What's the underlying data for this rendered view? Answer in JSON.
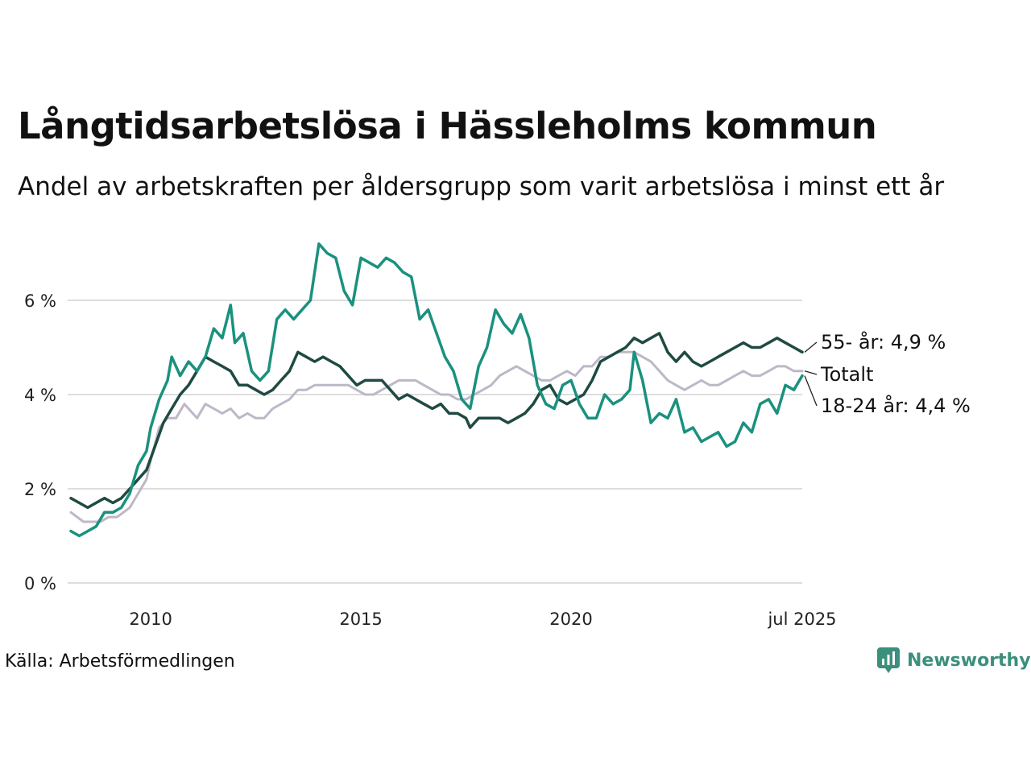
{
  "title": "Långtidsarbetslösa i Hässleholms kommun",
  "subtitle": "Andel av arbetskraften per åldersgrupp som varit arbetslösa i minst ett år",
  "source": "Källa: Arbetsförmedlingen",
  "brand": {
    "name": "Newsworthy",
    "icon": "newsworthy-logo-icon",
    "color": "#3a8f7d"
  },
  "chart_data": {
    "type": "line",
    "xlim": [
      2008.1,
      2025.5
    ],
    "ylim": [
      0,
      6
    ],
    "y_ticks": [
      0,
      2,
      4,
      6
    ],
    "y_tick_labels": [
      "0 %",
      "2 %",
      "4 %",
      "6 %"
    ],
    "x_ticks": [
      2010,
      2015,
      2020,
      2025.5
    ],
    "x_tick_labels": [
      "2010",
      "2015",
      "2020",
      "jul 2025"
    ],
    "grid": true,
    "series": [
      {
        "name": "Totalt",
        "label": "Totalt",
        "color": "#bdb8c7",
        "width": 3,
        "points": [
          [
            2008.1,
            1.5
          ],
          [
            2008.4,
            1.3
          ],
          [
            2008.8,
            1.3
          ],
          [
            2009.0,
            1.4
          ],
          [
            2009.2,
            1.4
          ],
          [
            2009.5,
            1.6
          ],
          [
            2009.7,
            1.9
          ],
          [
            2009.9,
            2.2
          ],
          [
            2010.0,
            2.6
          ],
          [
            2010.2,
            3.3
          ],
          [
            2010.4,
            3.5
          ],
          [
            2010.6,
            3.5
          ],
          [
            2010.8,
            3.8
          ],
          [
            2011.0,
            3.6
          ],
          [
            2011.1,
            3.5
          ],
          [
            2011.3,
            3.8
          ],
          [
            2011.5,
            3.7
          ],
          [
            2011.7,
            3.6
          ],
          [
            2011.9,
            3.7
          ],
          [
            2012.1,
            3.5
          ],
          [
            2012.3,
            3.6
          ],
          [
            2012.5,
            3.5
          ],
          [
            2012.7,
            3.5
          ],
          [
            2012.9,
            3.7
          ],
          [
            2013.1,
            3.8
          ],
          [
            2013.3,
            3.9
          ],
          [
            2013.5,
            4.1
          ],
          [
            2013.7,
            4.1
          ],
          [
            2013.9,
            4.2
          ],
          [
            2014.1,
            4.2
          ],
          [
            2014.3,
            4.2
          ],
          [
            2014.5,
            4.2
          ],
          [
            2014.7,
            4.2
          ],
          [
            2014.9,
            4.1
          ],
          [
            2015.1,
            4.0
          ],
          [
            2015.3,
            4.0
          ],
          [
            2015.5,
            4.1
          ],
          [
            2015.7,
            4.2
          ],
          [
            2015.9,
            4.3
          ],
          [
            2016.1,
            4.3
          ],
          [
            2016.3,
            4.3
          ],
          [
            2016.5,
            4.2
          ],
          [
            2016.7,
            4.1
          ],
          [
            2016.9,
            4.0
          ],
          [
            2017.1,
            4.0
          ],
          [
            2017.3,
            3.9
          ],
          [
            2017.5,
            3.9
          ],
          [
            2017.7,
            4.0
          ],
          [
            2017.9,
            4.1
          ],
          [
            2018.1,
            4.2
          ],
          [
            2018.3,
            4.4
          ],
          [
            2018.5,
            4.5
          ],
          [
            2018.7,
            4.6
          ],
          [
            2018.9,
            4.5
          ],
          [
            2019.1,
            4.4
          ],
          [
            2019.3,
            4.3
          ],
          [
            2019.5,
            4.3
          ],
          [
            2019.7,
            4.4
          ],
          [
            2019.9,
            4.5
          ],
          [
            2020.1,
            4.4
          ],
          [
            2020.3,
            4.6
          ],
          [
            2020.5,
            4.6
          ],
          [
            2020.7,
            4.8
          ],
          [
            2020.9,
            4.8
          ],
          [
            2021.1,
            4.9
          ],
          [
            2021.3,
            4.9
          ],
          [
            2021.5,
            4.9
          ],
          [
            2021.7,
            4.8
          ],
          [
            2021.9,
            4.7
          ],
          [
            2022.1,
            4.5
          ],
          [
            2022.3,
            4.3
          ],
          [
            2022.5,
            4.2
          ],
          [
            2022.7,
            4.1
          ],
          [
            2022.9,
            4.2
          ],
          [
            2023.1,
            4.3
          ],
          [
            2023.3,
            4.2
          ],
          [
            2023.5,
            4.2
          ],
          [
            2023.7,
            4.3
          ],
          [
            2023.9,
            4.4
          ],
          [
            2024.1,
            4.5
          ],
          [
            2024.3,
            4.4
          ],
          [
            2024.5,
            4.4
          ],
          [
            2024.7,
            4.5
          ],
          [
            2024.9,
            4.6
          ],
          [
            2025.1,
            4.6
          ],
          [
            2025.3,
            4.5
          ],
          [
            2025.5,
            4.5
          ]
        ]
      },
      {
        "name": "55- år",
        "label": "55- år: 4,9 %",
        "color": "#1f4a42",
        "width": 3.5,
        "points": [
          [
            2008.1,
            1.8
          ],
          [
            2008.3,
            1.7
          ],
          [
            2008.5,
            1.6
          ],
          [
            2008.7,
            1.7
          ],
          [
            2008.9,
            1.8
          ],
          [
            2009.1,
            1.7
          ],
          [
            2009.3,
            1.8
          ],
          [
            2009.5,
            2.0
          ],
          [
            2009.7,
            2.2
          ],
          [
            2009.9,
            2.4
          ],
          [
            2010.1,
            2.9
          ],
          [
            2010.3,
            3.4
          ],
          [
            2010.5,
            3.7
          ],
          [
            2010.7,
            4.0
          ],
          [
            2010.9,
            4.2
          ],
          [
            2011.1,
            4.5
          ],
          [
            2011.3,
            4.8
          ],
          [
            2011.5,
            4.7
          ],
          [
            2011.7,
            4.6
          ],
          [
            2011.9,
            4.5
          ],
          [
            2012.1,
            4.2
          ],
          [
            2012.3,
            4.2
          ],
          [
            2012.5,
            4.1
          ],
          [
            2012.7,
            4.0
          ],
          [
            2012.9,
            4.1
          ],
          [
            2013.1,
            4.3
          ],
          [
            2013.3,
            4.5
          ],
          [
            2013.5,
            4.9
          ],
          [
            2013.7,
            4.8
          ],
          [
            2013.9,
            4.7
          ],
          [
            2014.1,
            4.8
          ],
          [
            2014.3,
            4.7
          ],
          [
            2014.5,
            4.6
          ],
          [
            2014.7,
            4.4
          ],
          [
            2014.9,
            4.2
          ],
          [
            2015.1,
            4.3
          ],
          [
            2015.3,
            4.3
          ],
          [
            2015.5,
            4.3
          ],
          [
            2015.7,
            4.1
          ],
          [
            2015.9,
            3.9
          ],
          [
            2016.1,
            4.0
          ],
          [
            2016.3,
            3.9
          ],
          [
            2016.5,
            3.8
          ],
          [
            2016.7,
            3.7
          ],
          [
            2016.9,
            3.8
          ],
          [
            2017.1,
            3.6
          ],
          [
            2017.3,
            3.6
          ],
          [
            2017.5,
            3.5
          ],
          [
            2017.6,
            3.3
          ],
          [
            2017.8,
            3.5
          ],
          [
            2018.1,
            3.5
          ],
          [
            2018.3,
            3.5
          ],
          [
            2018.5,
            3.4
          ],
          [
            2018.7,
            3.5
          ],
          [
            2018.9,
            3.6
          ],
          [
            2019.1,
            3.8
          ],
          [
            2019.3,
            4.1
          ],
          [
            2019.5,
            4.2
          ],
          [
            2019.7,
            3.9
          ],
          [
            2019.9,
            3.8
          ],
          [
            2020.1,
            3.9
          ],
          [
            2020.3,
            4.0
          ],
          [
            2020.5,
            4.3
          ],
          [
            2020.7,
            4.7
          ],
          [
            2020.9,
            4.8
          ],
          [
            2021.1,
            4.9
          ],
          [
            2021.3,
            5.0
          ],
          [
            2021.5,
            5.2
          ],
          [
            2021.7,
            5.1
          ],
          [
            2021.9,
            5.2
          ],
          [
            2022.1,
            5.3
          ],
          [
            2022.3,
            4.9
          ],
          [
            2022.5,
            4.7
          ],
          [
            2022.7,
            4.9
          ],
          [
            2022.9,
            4.7
          ],
          [
            2023.1,
            4.6
          ],
          [
            2023.3,
            4.7
          ],
          [
            2023.5,
            4.8
          ],
          [
            2023.7,
            4.9
          ],
          [
            2023.9,
            5.0
          ],
          [
            2024.1,
            5.1
          ],
          [
            2024.3,
            5.0
          ],
          [
            2024.5,
            5.0
          ],
          [
            2024.7,
            5.1
          ],
          [
            2024.9,
            5.2
          ],
          [
            2025.1,
            5.1
          ],
          [
            2025.3,
            5.0
          ],
          [
            2025.5,
            4.9
          ]
        ]
      },
      {
        "name": "18-24 år",
        "label": "18-24 år: 4,4 %",
        "color": "#1a917e",
        "width": 3.5,
        "points": [
          [
            2008.1,
            1.1
          ],
          [
            2008.3,
            1.0
          ],
          [
            2008.5,
            1.1
          ],
          [
            2008.7,
            1.2
          ],
          [
            2008.9,
            1.5
          ],
          [
            2009.1,
            1.5
          ],
          [
            2009.3,
            1.6
          ],
          [
            2009.5,
            1.9
          ],
          [
            2009.7,
            2.5
          ],
          [
            2009.9,
            2.8
          ],
          [
            2010.0,
            3.3
          ],
          [
            2010.2,
            3.9
          ],
          [
            2010.4,
            4.3
          ],
          [
            2010.5,
            4.8
          ],
          [
            2010.7,
            4.4
          ],
          [
            2010.9,
            4.7
          ],
          [
            2011.1,
            4.5
          ],
          [
            2011.3,
            4.8
          ],
          [
            2011.5,
            5.4
          ],
          [
            2011.7,
            5.2
          ],
          [
            2011.9,
            5.9
          ],
          [
            2012.0,
            5.1
          ],
          [
            2012.2,
            5.3
          ],
          [
            2012.4,
            4.5
          ],
          [
            2012.6,
            4.3
          ],
          [
            2012.8,
            4.5
          ],
          [
            2013.0,
            5.6
          ],
          [
            2013.2,
            5.8
          ],
          [
            2013.4,
            5.6
          ],
          [
            2013.6,
            5.8
          ],
          [
            2013.8,
            6.0
          ],
          [
            2014.0,
            7.2
          ],
          [
            2014.2,
            7.0
          ],
          [
            2014.4,
            6.9
          ],
          [
            2014.6,
            6.2
          ],
          [
            2014.8,
            5.9
          ],
          [
            2015.0,
            6.9
          ],
          [
            2015.2,
            6.8
          ],
          [
            2015.4,
            6.7
          ],
          [
            2015.6,
            6.9
          ],
          [
            2015.8,
            6.8
          ],
          [
            2016.0,
            6.6
          ],
          [
            2016.2,
            6.5
          ],
          [
            2016.4,
            5.6
          ],
          [
            2016.6,
            5.8
          ],
          [
            2016.8,
            5.3
          ],
          [
            2017.0,
            4.8
          ],
          [
            2017.2,
            4.5
          ],
          [
            2017.4,
            3.9
          ],
          [
            2017.6,
            3.7
          ],
          [
            2017.8,
            4.6
          ],
          [
            2018.0,
            5.0
          ],
          [
            2018.2,
            5.8
          ],
          [
            2018.4,
            5.5
          ],
          [
            2018.6,
            5.3
          ],
          [
            2018.8,
            5.7
          ],
          [
            2019.0,
            5.2
          ],
          [
            2019.2,
            4.2
          ],
          [
            2019.4,
            3.8
          ],
          [
            2019.6,
            3.7
          ],
          [
            2019.8,
            4.2
          ],
          [
            2020.0,
            4.3
          ],
          [
            2020.2,
            3.8
          ],
          [
            2020.4,
            3.5
          ],
          [
            2020.6,
            3.5
          ],
          [
            2020.8,
            4.0
          ],
          [
            2021.0,
            3.8
          ],
          [
            2021.2,
            3.9
          ],
          [
            2021.4,
            4.1
          ],
          [
            2021.5,
            4.9
          ],
          [
            2021.7,
            4.3
          ],
          [
            2021.9,
            3.4
          ],
          [
            2022.1,
            3.6
          ],
          [
            2022.3,
            3.5
          ],
          [
            2022.5,
            3.9
          ],
          [
            2022.7,
            3.2
          ],
          [
            2022.9,
            3.3
          ],
          [
            2023.1,
            3.0
          ],
          [
            2023.3,
            3.1
          ],
          [
            2023.5,
            3.2
          ],
          [
            2023.7,
            2.9
          ],
          [
            2023.9,
            3.0
          ],
          [
            2024.1,
            3.4
          ],
          [
            2024.3,
            3.2
          ],
          [
            2024.5,
            3.8
          ],
          [
            2024.7,
            3.9
          ],
          [
            2024.9,
            3.6
          ],
          [
            2025.1,
            4.2
          ],
          [
            2025.3,
            4.1
          ],
          [
            2025.5,
            4.4
          ]
        ]
      }
    ]
  }
}
